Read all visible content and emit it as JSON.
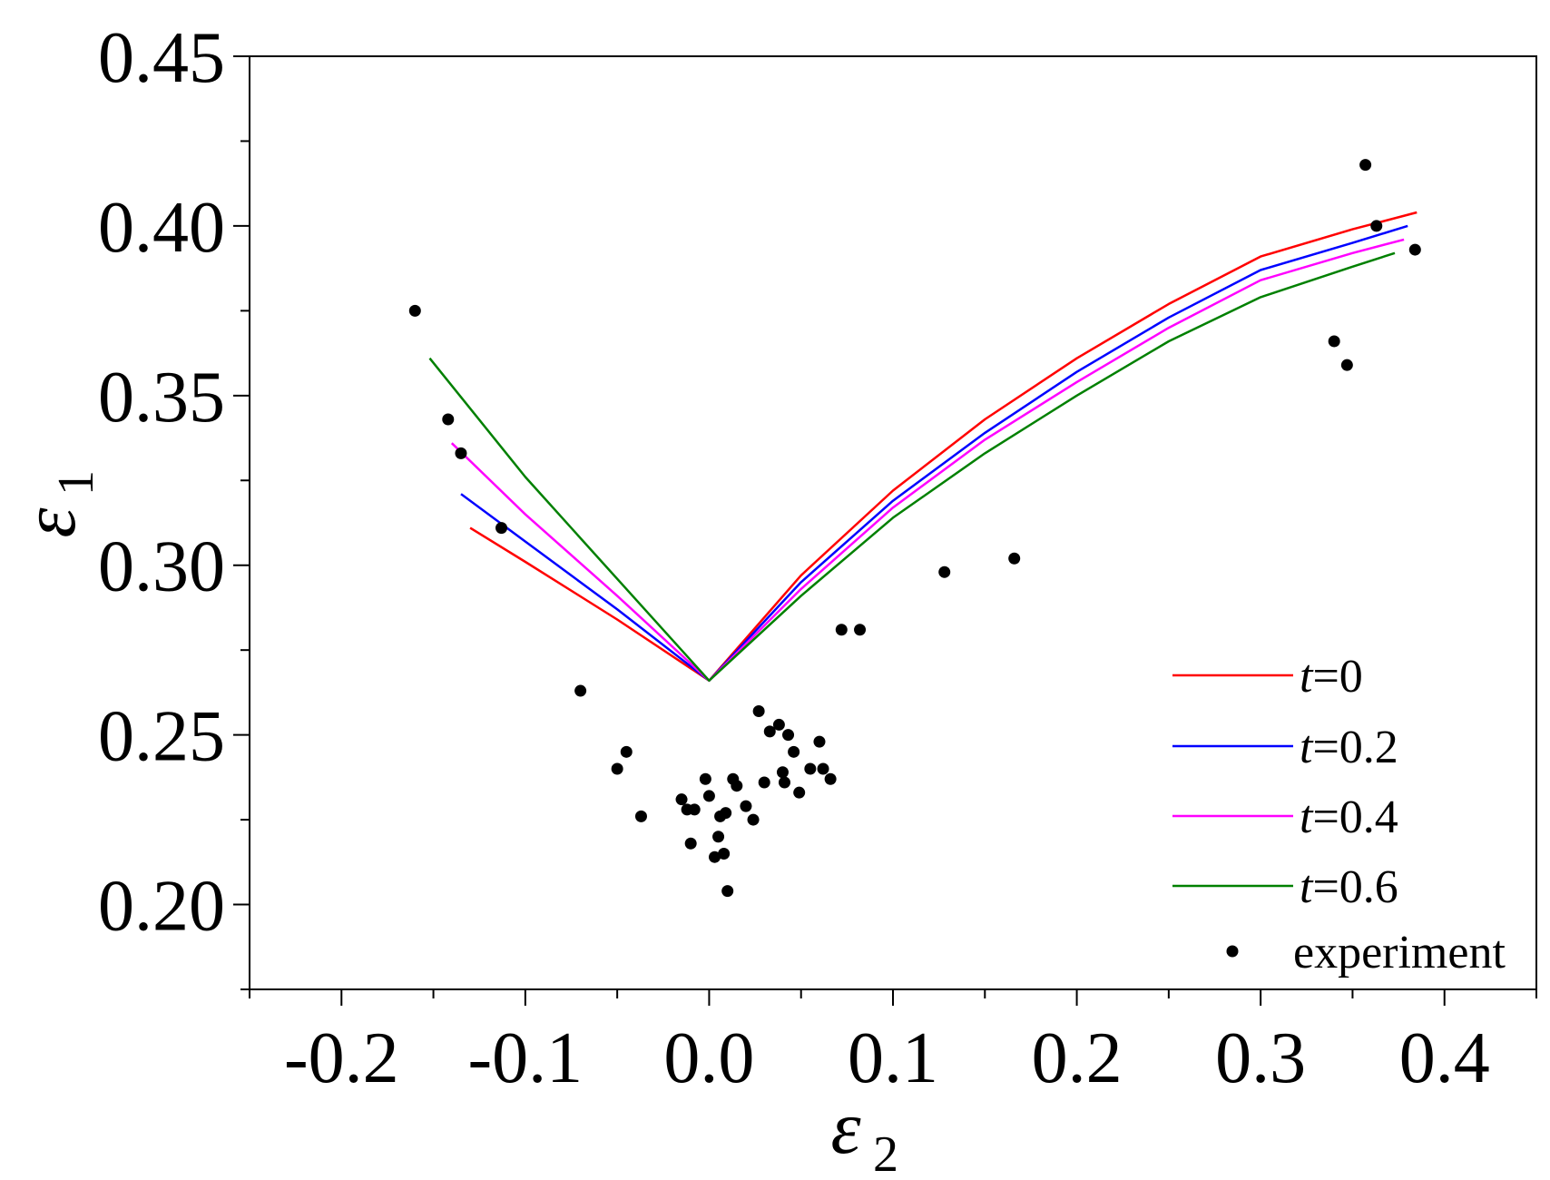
{
  "chart_data": {
    "type": "scatter",
    "title": "",
    "xlabel": {
      "symbol": "ε",
      "subscript": "2"
    },
    "ylabel": {
      "symbol": "ε",
      "subscript": "1"
    },
    "xlim": [
      -0.25,
      0.45
    ],
    "ylim": [
      0.175,
      0.45
    ],
    "x_ticks": [
      -0.2,
      -0.1,
      0.0,
      0.1,
      0.2,
      0.3,
      0.4
    ],
    "x_tick_labels": [
      "-0.2",
      "-0.1",
      "0.0",
      "0.1",
      "0.2",
      "0.3",
      "0.4"
    ],
    "y_ticks": [
      0.2,
      0.25,
      0.3,
      0.35,
      0.4,
      0.45
    ],
    "y_tick_labels": [
      "0.20",
      "0.25",
      "0.30",
      "0.35",
      "0.40",
      "0.45"
    ],
    "x_minor_step": 0.05,
    "y_minor_step": 0.025,
    "grid": false,
    "legend_position": "bottom-right",
    "series": [
      {
        "name": "t=0",
        "name_var": "t",
        "name_rest": "=0",
        "color": "#ff0000",
        "x": [
          -0.13,
          -0.1,
          -0.05,
          0.0,
          0.05,
          0.1,
          0.15,
          0.2,
          0.25,
          0.3,
          0.35,
          0.385
        ],
        "y": [
          0.311,
          0.301,
          0.284,
          0.266,
          0.297,
          0.322,
          0.343,
          0.361,
          0.377,
          0.391,
          0.399,
          0.404
        ]
      },
      {
        "name": "t=0.2",
        "name_var": "t",
        "name_rest": "=0.2",
        "color": "#0000ff",
        "x": [
          -0.135,
          -0.1,
          -0.05,
          0.0,
          0.05,
          0.1,
          0.15,
          0.2,
          0.25,
          0.3,
          0.35,
          0.38
        ],
        "y": [
          0.321,
          0.307,
          0.287,
          0.266,
          0.295,
          0.319,
          0.339,
          0.357,
          0.373,
          0.387,
          0.395,
          0.4
        ]
      },
      {
        "name": "t=0.4",
        "name_var": "t",
        "name_rest": "=0.4",
        "color": "#ff00ff",
        "x": [
          -0.14,
          -0.1,
          -0.05,
          0.0,
          0.05,
          0.1,
          0.15,
          0.2,
          0.25,
          0.3,
          0.35,
          0.378
        ],
        "y": [
          0.336,
          0.315,
          0.291,
          0.266,
          0.293,
          0.317,
          0.337,
          0.354,
          0.37,
          0.384,
          0.392,
          0.396
        ]
      },
      {
        "name": "t=0.6",
        "name_var": "t",
        "name_rest": "=0.6",
        "color": "#008000",
        "x": [
          -0.152,
          -0.1,
          -0.05,
          0.0,
          0.05,
          0.1,
          0.15,
          0.2,
          0.25,
          0.3,
          0.35,
          0.373
        ],
        "y": [
          0.361,
          0.326,
          0.296,
          0.266,
          0.291,
          0.314,
          0.333,
          0.35,
          0.366,
          0.379,
          0.388,
          0.392
        ]
      }
    ],
    "scatter": {
      "name": "experiment",
      "color": "#000000",
      "points": [
        [
          -0.16,
          0.375
        ],
        [
          -0.142,
          0.343
        ],
        [
          -0.135,
          0.333
        ],
        [
          -0.113,
          0.311
        ],
        [
          -0.07,
          0.263
        ],
        [
          -0.05,
          0.24
        ],
        [
          -0.045,
          0.245
        ],
        [
          -0.037,
          0.226
        ],
        [
          -0.015,
          0.231
        ],
        [
          -0.012,
          0.228
        ],
        [
          -0.01,
          0.218
        ],
        [
          -0.008,
          0.228
        ],
        [
          -0.002,
          0.237
        ],
        [
          0.0,
          0.232
        ],
        [
          0.003,
          0.214
        ],
        [
          0.005,
          0.22
        ],
        [
          0.006,
          0.226
        ],
        [
          0.008,
          0.215
        ],
        [
          0.009,
          0.227
        ],
        [
          0.01,
          0.204
        ],
        [
          0.013,
          0.237
        ],
        [
          0.015,
          0.235
        ],
        [
          0.02,
          0.229
        ],
        [
          0.024,
          0.225
        ],
        [
          0.027,
          0.257
        ],
        [
          0.03,
          0.236
        ],
        [
          0.033,
          0.251
        ],
        [
          0.038,
          0.253
        ],
        [
          0.04,
          0.239
        ],
        [
          0.041,
          0.236
        ],
        [
          0.043,
          0.25
        ],
        [
          0.046,
          0.245
        ],
        [
          0.049,
          0.233
        ],
        [
          0.055,
          0.24
        ],
        [
          0.06,
          0.248
        ],
        [
          0.062,
          0.24
        ],
        [
          0.066,
          0.237
        ],
        [
          0.072,
          0.281
        ],
        [
          0.082,
          0.281
        ],
        [
          0.128,
          0.298
        ],
        [
          0.166,
          0.302
        ],
        [
          0.34,
          0.366
        ],
        [
          0.347,
          0.359
        ],
        [
          0.357,
          0.418
        ],
        [
          0.363,
          0.4
        ],
        [
          0.384,
          0.393
        ]
      ]
    }
  }
}
